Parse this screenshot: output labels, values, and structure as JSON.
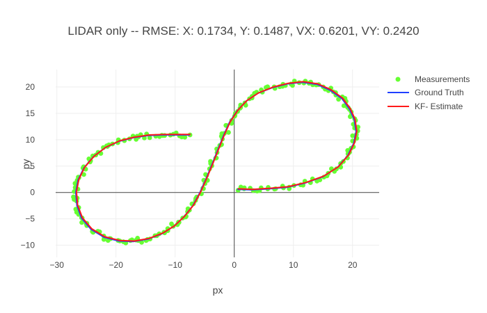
{
  "chart_data": {
    "type": "scatter",
    "title": "LIDAR only -- RMSE: X: 0.1734, Y: 0.1487, VX: 0.6201, VY: 0.2420",
    "xlabel": "px",
    "ylabel": "py",
    "xlim": [
      -30.2,
      24.5
    ],
    "ylim": [
      -12.3,
      23.3
    ],
    "x_ticks": [
      -30,
      -20,
      -10,
      0,
      10,
      20
    ],
    "y_ticks": [
      -10,
      -5,
      0,
      5,
      10,
      15,
      20
    ],
    "x_tick_labels": [
      "−30",
      "−20",
      "−10",
      "0",
      "10",
      "20"
    ],
    "y_tick_labels": [
      "−10",
      "−5",
      "0",
      "5",
      "10",
      "15",
      "20"
    ],
    "grid": true,
    "zeroline": true,
    "legend": "top-right",
    "colors": {
      "measurements": "#66ff33",
      "ground_truth": "#1f3fff",
      "estimate": "#ff1a1a",
      "grid": "#eeeeee",
      "zeroline": "#444444"
    },
    "series": [
      {
        "name": "Measurements",
        "kind": "markers"
      },
      {
        "name": "Ground Truth",
        "kind": "line"
      },
      {
        "name": "KF- Estimate",
        "kind": "line"
      }
    ],
    "path_points": [
      [
        0.5,
        0.6
      ],
      [
        3,
        0.5
      ],
      [
        6,
        0.7
      ],
      [
        9,
        1.0
      ],
      [
        12,
        1.8
      ],
      [
        15,
        3.0
      ],
      [
        17.5,
        4.8
      ],
      [
        19.2,
        7.0
      ],
      [
        20.2,
        9.3
      ],
      [
        20.6,
        11.5
      ],
      [
        20.3,
        13.8
      ],
      [
        19.5,
        15.8
      ],
      [
        18.2,
        17.8
      ],
      [
        16.2,
        19.4
      ],
      [
        14,
        20.5
      ],
      [
        11.5,
        20.9
      ],
      [
        9,
        20.6
      ],
      [
        6.5,
        19.9
      ],
      [
        4,
        18.8
      ],
      [
        2,
        17.3
      ],
      [
        0.5,
        15.5
      ],
      [
        -0.8,
        13.3
      ],
      [
        -1.8,
        10.8
      ],
      [
        -2.8,
        8.0
      ],
      [
        -3.8,
        5.2
      ],
      [
        -4.8,
        2.5
      ],
      [
        -5.8,
        0
      ],
      [
        -7,
        -2.5
      ],
      [
        -8.5,
        -4.6
      ],
      [
        -10.2,
        -6.4
      ],
      [
        -12.2,
        -7.8
      ],
      [
        -14.5,
        -8.8
      ],
      [
        -17,
        -9.3
      ],
      [
        -19.5,
        -9.2
      ],
      [
        -22,
        -8.5
      ],
      [
        -24.2,
        -7.0
      ],
      [
        -25.8,
        -4.9
      ],
      [
        -26.6,
        -2.5
      ],
      [
        -26.8,
        0
      ],
      [
        -26.4,
        2.4
      ],
      [
        -25.4,
        4.7
      ],
      [
        -23.8,
        6.8
      ],
      [
        -21.8,
        8.5
      ],
      [
        -19.5,
        9.7
      ],
      [
        -17,
        10.4
      ],
      [
        -14.5,
        10.8
      ],
      [
        -12,
        10.9
      ],
      [
        -9.5,
        10.9
      ],
      [
        -7.5,
        10.9
      ]
    ]
  }
}
